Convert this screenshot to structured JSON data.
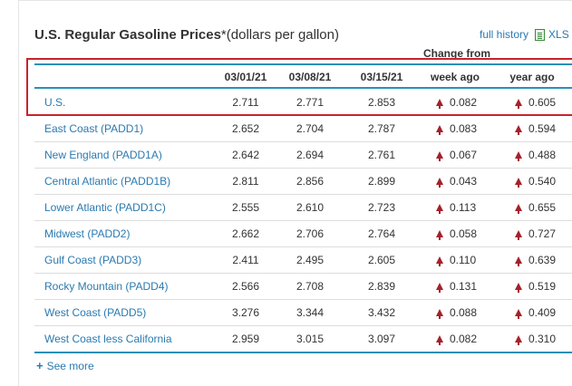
{
  "title": {
    "main": "U.S. Regular Gasoline Prices",
    "suffix": "*(dollars per gallon)"
  },
  "links": {
    "full_history": "full history",
    "xls": "XLS",
    "see_more": "See more"
  },
  "header": {
    "change_from": "Change from",
    "col1": "03/01/21",
    "col2": "03/08/21",
    "col3": "03/15/21",
    "week_ago": "week ago",
    "year_ago": "year ago"
  },
  "colors": {
    "accent": "#2c8fb8",
    "link": "#2a7ab0",
    "highlight": "#c8232c",
    "up_arrow": "#a5202b"
  },
  "rows": [
    {
      "region": "U.S.",
      "d1": "2.711",
      "d2": "2.771",
      "d3": "2.853",
      "week": "0.082",
      "year": "0.605"
    },
    {
      "region": "East Coast (PADD1)",
      "d1": "2.652",
      "d2": "2.704",
      "d3": "2.787",
      "week": "0.083",
      "year": "0.594"
    },
    {
      "region": "New England (PADD1A)",
      "d1": "2.642",
      "d2": "2.694",
      "d3": "2.761",
      "week": "0.067",
      "year": "0.488"
    },
    {
      "region": "Central Atlantic (PADD1B)",
      "d1": "2.811",
      "d2": "2.856",
      "d3": "2.899",
      "week": "0.043",
      "year": "0.540"
    },
    {
      "region": "Lower Atlantic (PADD1C)",
      "d1": "2.555",
      "d2": "2.610",
      "d3": "2.723",
      "week": "0.113",
      "year": "0.655"
    },
    {
      "region": "Midwest (PADD2)",
      "d1": "2.662",
      "d2": "2.706",
      "d3": "2.764",
      "week": "0.058",
      "year": "0.727"
    },
    {
      "region": "Gulf Coast (PADD3)",
      "d1": "2.411",
      "d2": "2.495",
      "d3": "2.605",
      "week": "0.110",
      "year": "0.639"
    },
    {
      "region": "Rocky Mountain (PADD4)",
      "d1": "2.566",
      "d2": "2.708",
      "d3": "2.839",
      "week": "0.131",
      "year": "0.519"
    },
    {
      "region": "West Coast (PADD5)",
      "d1": "3.276",
      "d2": "3.344",
      "d3": "3.432",
      "week": "0.088",
      "year": "0.409"
    },
    {
      "region": "West Coast less California",
      "d1": "2.959",
      "d2": "3.015",
      "d3": "3.097",
      "week": "0.082",
      "year": "0.310"
    }
  ]
}
